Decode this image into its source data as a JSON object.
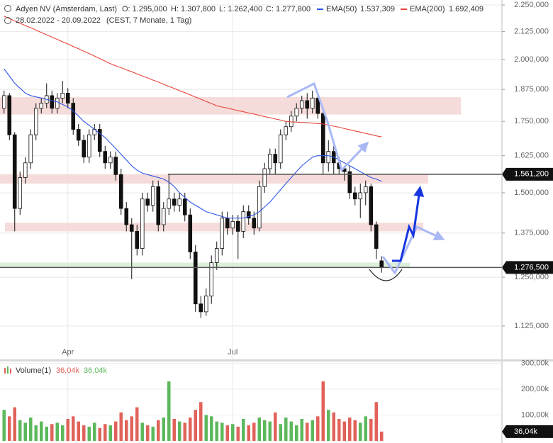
{
  "chart_data": {
    "type": "candlestick",
    "header": {
      "name": "Adyen NV (Amsterdam, Last)",
      "open": "O: 1.295,000",
      "high": "H: 1.307,800",
      "low": "L: 1.262,400",
      "close": "C: 1.277,800",
      "range": "28.02.2022 - 20.09.2022",
      "info": "(CEST, 7 Monate, 1 Tag)"
    },
    "categories": [
      null,
      null,
      null,
      null,
      null,
      null,
      null,
      null,
      null,
      null,
      null,
      null,
      "Apr",
      null,
      null,
      null,
      null,
      null,
      null,
      null,
      null,
      null,
      null,
      null,
      null,
      null,
      null,
      null,
      null,
      null,
      null,
      null,
      null,
      null,
      null,
      null,
      null,
      null,
      null,
      null,
      null,
      null,
      null,
      "Jul",
      null,
      null,
      null,
      null,
      null,
      null,
      null,
      null,
      null,
      null,
      null,
      null,
      null,
      null,
      null,
      null,
      null,
      null,
      null,
      null,
      null,
      null,
      null,
      null,
      null,
      null,
      null,
      null
    ],
    "open": [
      1800,
      1850,
      1700,
      1450,
      1550,
      1600,
      1700,
      1800,
      1820,
      1850,
      1800,
      1840,
      1860,
      1820,
      1720,
      1680,
      1620,
      1700,
      1720,
      1640,
      1600,
      1620,
      1560,
      1450,
      1400,
      1380,
      1330,
      1480,
      1460,
      1520,
      1400,
      1450,
      1480,
      1460,
      1480,
      1430,
      1320,
      1180,
      1160,
      1200,
      1290,
      1330,
      1420,
      1390,
      1410,
      1380,
      1440,
      1420,
      1390,
      1520,
      1580,
      1630,
      1600,
      1700,
      1730,
      1770,
      1800,
      1830,
      1800,
      1840,
      1780,
      1600,
      1640,
      1600,
      1580,
      1570,
      1500,
      1480,
      1500,
      1520,
      1400,
      1295
    ],
    "high": [
      1870,
      1860,
      1710,
      1570,
      1620,
      1720,
      1820,
      1840,
      1900,
      1870,
      1860,
      1910,
      1880,
      1840,
      1740,
      1700,
      1720,
      1740,
      1740,
      1660,
      1640,
      1640,
      1580,
      1470,
      1420,
      1400,
      1500,
      1500,
      1540,
      1540,
      1470,
      1560,
      1500,
      1500,
      1500,
      1450,
      1340,
      1200,
      1220,
      1310,
      1350,
      1440,
      1440,
      1430,
      1430,
      1460,
      1460,
      1440,
      1540,
      1600,
      1650,
      1650,
      1720,
      1750,
      1790,
      1820,
      1850,
      1860,
      1870,
      1860,
      1800,
      1680,
      1660,
      1620,
      1590,
      1590,
      1520,
      1530,
      1540,
      1530,
      1410,
      1307.8
    ],
    "low": [
      1780,
      1680,
      1380,
      1430,
      1530,
      1580,
      1680,
      1780,
      1800,
      1780,
      1780,
      1820,
      1800,
      1700,
      1660,
      1600,
      1600,
      1680,
      1620,
      1580,
      1580,
      1540,
      1430,
      1380,
      1245,
      1310,
      1310,
      1440,
      1440,
      1380,
      1380,
      1430,
      1440,
      1440,
      1410,
      1300,
      1160,
      1145,
      1150,
      1180,
      1270,
      1310,
      1370,
      1370,
      1300,
      1360,
      1400,
      1370,
      1380,
      1500,
      1560,
      1560,
      1580,
      1680,
      1710,
      1750,
      1780,
      1760,
      1780,
      1760,
      1560,
      1570,
      1560,
      1560,
      1540,
      1480,
      1460,
      1420,
      1460,
      1380,
      1300,
      1262.4
    ],
    "close": [
      1850,
      1700,
      1450,
      1550,
      1600,
      1700,
      1800,
      1820,
      1850,
      1800,
      1840,
      1860,
      1820,
      1720,
      1680,
      1620,
      1700,
      1720,
      1640,
      1600,
      1620,
      1560,
      1450,
      1400,
      1380,
      1330,
      1480,
      1460,
      1520,
      1400,
      1450,
      1480,
      1460,
      1480,
      1430,
      1320,
      1180,
      1160,
      1200,
      1290,
      1330,
      1420,
      1390,
      1410,
      1380,
      1440,
      1420,
      1390,
      1520,
      1580,
      1630,
      1600,
      1700,
      1730,
      1770,
      1800,
      1830,
      1800,
      1840,
      1780,
      1600,
      1640,
      1600,
      1580,
      1570,
      1500,
      1480,
      1500,
      1520,
      1400,
      1330,
      1277.8
    ],
    "up_color": "#ffffff",
    "down_color": "#111111",
    "series": [
      {
        "name": "EMA(50)",
        "color": "#2d55e6",
        "last_label": "1.537,309",
        "values": [
          1960,
          1930,
          1900,
          1880,
          1860,
          1850,
          1845,
          1840,
          1835,
          1830,
          1825,
          1815,
          1805,
          1790,
          1770,
          1750,
          1735,
          1720,
          1705,
          1690,
          1670,
          1650,
          1630,
          1610,
          1590,
          1575,
          1565,
          1560,
          1555,
          1550,
          1545,
          1535,
          1520,
          1500,
          1485,
          1470,
          1460,
          1450,
          1440,
          1435,
          1430,
          1425,
          1420,
          1420,
          1420,
          1420,
          1425,
          1430,
          1440,
          1455,
          1470,
          1490,
          1510,
          1530,
          1550,
          1570,
          1590,
          1605,
          1620,
          1625,
          1625,
          1625,
          1620,
          1610,
          1600,
          1590,
          1580,
          1570,
          1560,
          1550,
          1545,
          1537.309
        ]
      },
      {
        "name": "EMA(200)",
        "color": "#e8443a",
        "last_label": "1.692,409",
        "values": [
          2196,
          2185,
          2174,
          2163,
          2152,
          2142,
          2131,
          2120,
          2110,
          2099,
          2089,
          2078,
          2068,
          2057,
          2047,
          2036,
          2026,
          2015,
          2004,
          1993,
          1982,
          1973,
          1965,
          1956,
          1948,
          1939,
          1930,
          1922,
          1913,
          1905,
          1896,
          1887,
          1879,
          1870,
          1862,
          1853,
          1844,
          1836,
          1827,
          1819,
          1810,
          1805,
          1801,
          1796,
          1791,
          1787,
          1782,
          1778,
          1773,
          1768,
          1764,
          1759,
          1755,
          1750,
          1748,
          1747,
          1746,
          1745,
          1743,
          1742,
          1740,
          1736,
          1732,
          1728,
          1723,
          1719,
          1714,
          1710,
          1705,
          1701,
          1696,
          1692.409
        ]
      }
    ],
    "log_scale": true,
    "ylim": [
      1050,
      2274.3
    ],
    "yticks": [
      {
        "value": 2250,
        "label": "2.250,000"
      },
      {
        "value": 2125,
        "label": "2.125,000"
      },
      {
        "value": 2000,
        "label": "2.000,000"
      },
      {
        "value": 1875,
        "label": "1.875,000"
      },
      {
        "value": 1750,
        "label": "1.750,000"
      },
      {
        "value": 1625,
        "label": "1.625,000"
      },
      {
        "value": 1500,
        "label": "1.500,000"
      },
      {
        "value": 1375,
        "label": "1.375,000"
      },
      {
        "value": 1250,
        "label": "1.250,000"
      },
      {
        "value": 1125,
        "label": "1.125,000"
      }
    ],
    "grid": true,
    "levels": [
      {
        "value": 1561.2,
        "label": "1.561,200"
      },
      {
        "value": 1276.5,
        "label": "1.276,500"
      }
    ],
    "zones": [
      {
        "range": [
          1776,
          1844
        ],
        "color": "#f3d6d4"
      },
      {
        "range": [
          1530,
          1561.2
        ],
        "color": "#f3d6d4"
      },
      {
        "range": [
          1380,
          1406
        ],
        "color": "#f3d6d4"
      },
      {
        "range": [
          1276.5,
          1290
        ],
        "color": "#d5ecd3"
      }
    ],
    "volume": {
      "name": "Volume(1)",
      "last_label": "36,04k",
      "up_color": "#5cb85c",
      "down_color": "#e0625a",
      "values": [
        120,
        95,
        130,
        80,
        70,
        90,
        60,
        75,
        55,
        65,
        70,
        60,
        85,
        95,
        75,
        60,
        55,
        70,
        50,
        65,
        60,
        75,
        110,
        80,
        95,
        130,
        70,
        60,
        55,
        80,
        90,
        230,
        85,
        75,
        70,
        90,
        120,
        150,
        100,
        95,
        75,
        70,
        60,
        65,
        55,
        85,
        60,
        70,
        90,
        80,
        75,
        110,
        65,
        90,
        75,
        60,
        85,
        70,
        80,
        95,
        230,
        120,
        110,
        85,
        75,
        90,
        80,
        70,
        95,
        85,
        150,
        36.04
      ],
      "ylim": [
        0,
        307
      ],
      "yticks": [
        {
          "value": 300,
          "label": "300,00k"
        },
        {
          "value": 200,
          "label": "200,00k"
        },
        {
          "value": 100,
          "label": "100,00k"
        }
      ]
    }
  }
}
